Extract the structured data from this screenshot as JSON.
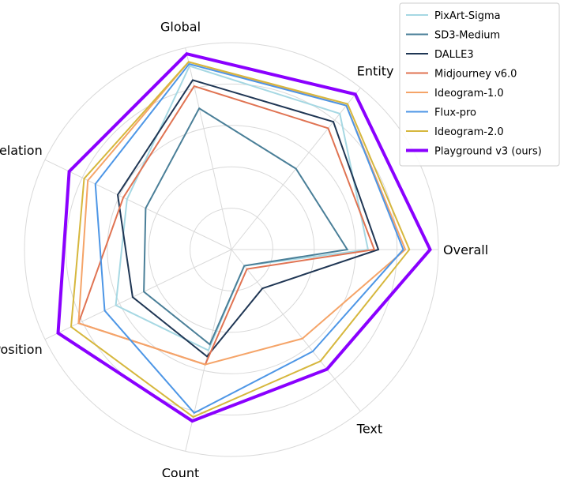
{
  "chart_data": {
    "type": "radar",
    "axes": [
      "Overall",
      "Entity",
      "Global",
      "Relation",
      "Position",
      "Count",
      "Text"
    ],
    "rlim": [
      0,
      1
    ],
    "grid": true,
    "legend_placement": "top-right",
    "series": [
      {
        "name": "PixArt-Sigma",
        "color": "#a6d8e3",
        "values": [
          0.66,
          0.84,
          0.91,
          0.56,
          0.62,
          0.5,
          0.1
        ]
      },
      {
        "name": "SD3-Medium",
        "color": "#4a7f98",
        "values": [
          0.56,
          0.5,
          0.7,
          0.46,
          0.47,
          0.47,
          0.1
        ]
      },
      {
        "name": "DALLE3",
        "color": "#1f3654",
        "values": [
          0.71,
          0.79,
          0.84,
          0.61,
          0.53,
          0.53,
          0.24
        ]
      },
      {
        "name": "Midjourney v6.0",
        "color": "#e07352",
        "values": [
          0.69,
          0.75,
          0.81,
          0.58,
          0.82,
          0.57,
          0.12
        ]
      },
      {
        "name": "Ideogram-1.0",
        "color": "#f5a468",
        "values": [
          0.84,
          0.89,
          0.93,
          0.77,
          0.82,
          0.57,
          0.55
        ]
      },
      {
        "name": "Flux-pro",
        "color": "#4d96e6",
        "values": [
          0.83,
          0.89,
          0.92,
          0.73,
          0.68,
          0.81,
          0.63
        ]
      },
      {
        "name": "Ideogram-2.0",
        "color": "#d6b73d",
        "values": [
          0.86,
          0.9,
          0.93,
          0.79,
          0.86,
          0.83,
          0.69
        ]
      },
      {
        "name": "Playground v3 (ours)",
        "color": "#8a00ff",
        "values": [
          0.96,
          0.96,
          0.97,
          0.87,
          0.93,
          0.85,
          0.74
        ]
      }
    ]
  }
}
